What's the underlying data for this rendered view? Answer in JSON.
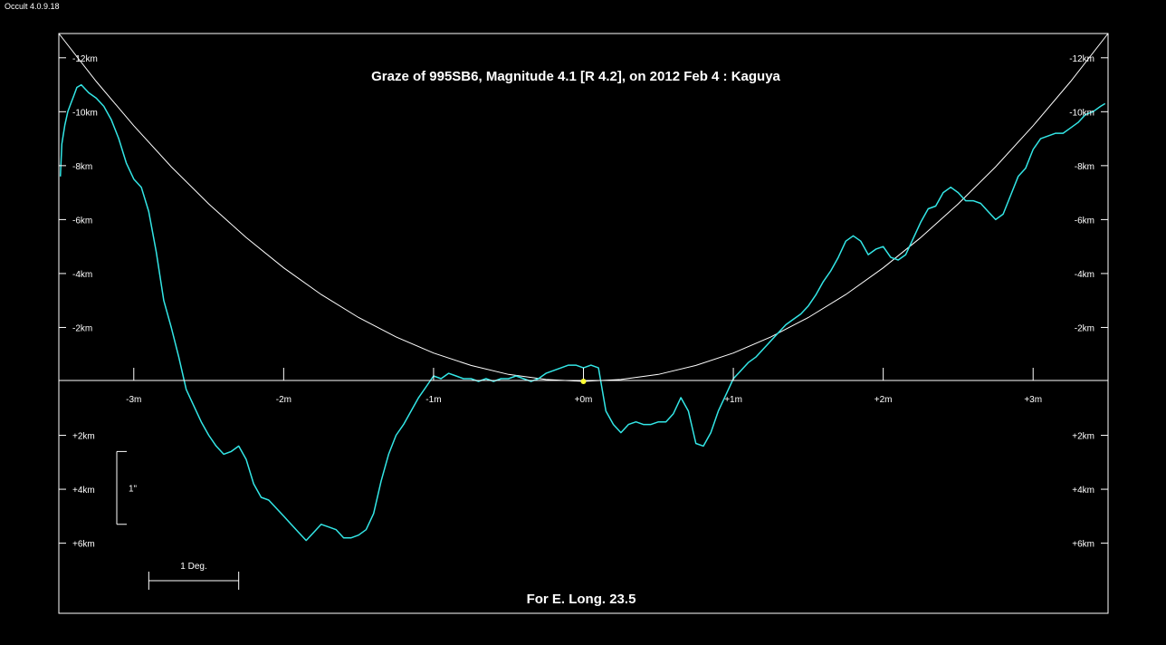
{
  "window": {
    "app_version": "Occult 4.0.9.18"
  },
  "colors": {
    "background": "#000000",
    "frame": "#ffffff",
    "profile": "#33e6e6",
    "curve": "#ffffff",
    "star": "#ffff33"
  },
  "chart_data": {
    "type": "line",
    "title": "Graze of  995SB6,  Magnitude 4.1 [R 4.2],  on 2012 Feb  4  :  Kaguya",
    "footer": "For E. Long. 23.5",
    "xlabel": "",
    "ylabel": "",
    "xlim": [
      -3.5,
      3.5
    ],
    "ylim": [
      -12.9,
      8.6
    ],
    "grid": false,
    "x_ticks": [
      -3,
      -2,
      -1,
      0,
      1,
      2,
      3
    ],
    "x_tick_labels": [
      "-3m",
      "-2m",
      "-1m",
      "+0m",
      "+1m",
      "+2m",
      "+3m"
    ],
    "y_ticks": [
      -12,
      -10,
      -8,
      -6,
      -4,
      -2,
      2,
      4,
      6
    ],
    "y_tick_labels": [
      "-12km",
      "-10km",
      "-8km",
      "-6km",
      "-4km",
      "-2km",
      "+2km",
      "+4km",
      "+6km"
    ],
    "scale_bar_vertical": {
      "label": "1\"",
      "y_range": [
        2.6,
        5.3
      ]
    },
    "scale_bar_horizontal": {
      "label": "1 Deg.",
      "x_range": [
        -2.9,
        -2.3
      ]
    },
    "star_point": {
      "x": 0,
      "y": 0
    },
    "series": [
      {
        "style": "reference-curve",
        "x": [
          -3.5,
          -3.25,
          -3.0,
          -2.75,
          -2.5,
          -2.25,
          -2.0,
          -1.75,
          -1.5,
          -1.25,
          -1.0,
          -0.75,
          -0.5,
          -0.25,
          0.0,
          0.25,
          0.5,
          0.75,
          1.0,
          1.25,
          1.5,
          1.75,
          2.0,
          2.25,
          2.5,
          2.75,
          3.0,
          3.25,
          3.5
        ],
        "y": [
          -12.9,
          -11.12,
          -9.48,
          -7.96,
          -6.58,
          -5.33,
          -4.21,
          -3.22,
          -2.37,
          -1.65,
          -1.05,
          -0.59,
          -0.26,
          -0.07,
          0.0,
          -0.07,
          -0.26,
          -0.59,
          -1.05,
          -1.65,
          -2.37,
          -3.22,
          -4.21,
          -5.33,
          -6.58,
          -7.96,
          -9.48,
          -11.12,
          -12.9
        ]
      },
      {
        "style": "limb-profile",
        "x": [
          -3.49,
          -3.48,
          -3.46,
          -3.44,
          -3.42,
          -3.4,
          -3.38,
          -3.35,
          -3.3,
          -3.25,
          -3.2,
          -3.15,
          -3.1,
          -3.05,
          -3.0,
          -2.95,
          -2.9,
          -2.85,
          -2.8,
          -2.75,
          -2.7,
          -2.65,
          -2.6,
          -2.55,
          -2.5,
          -2.45,
          -2.4,
          -2.35,
          -2.3,
          -2.25,
          -2.2,
          -2.15,
          -2.1,
          -2.05,
          -2.0,
          -1.95,
          -1.9,
          -1.85,
          -1.8,
          -1.75,
          -1.7,
          -1.65,
          -1.6,
          -1.55,
          -1.5,
          -1.45,
          -1.4,
          -1.35,
          -1.3,
          -1.25,
          -1.2,
          -1.15,
          -1.1,
          -1.05,
          -1.0,
          -0.95,
          -0.9,
          -0.85,
          -0.8,
          -0.75,
          -0.7,
          -0.65,
          -0.6,
          -0.55,
          -0.5,
          -0.45,
          -0.4,
          -0.35,
          -0.3,
          -0.25,
          -0.2,
          -0.15,
          -0.1,
          -0.05,
          0.0,
          0.05,
          0.1,
          0.15,
          0.2,
          0.25,
          0.3,
          0.35,
          0.4,
          0.45,
          0.5,
          0.55,
          0.6,
          0.65,
          0.7,
          0.75,
          0.8,
          0.85,
          0.9,
          0.95,
          1.0,
          1.05,
          1.1,
          1.15,
          1.2,
          1.25,
          1.3,
          1.35,
          1.4,
          1.45,
          1.5,
          1.55,
          1.6,
          1.65,
          1.7,
          1.75,
          1.8,
          1.85,
          1.9,
          1.95,
          2.0,
          2.05,
          2.1,
          2.15,
          2.2,
          2.25,
          2.3,
          2.35,
          2.4,
          2.45,
          2.5,
          2.55,
          2.6,
          2.65,
          2.7,
          2.75,
          2.8,
          2.85,
          2.9,
          2.95,
          3.0,
          3.05,
          3.1,
          3.15,
          3.2,
          3.25,
          3.3,
          3.35,
          3.4,
          3.45,
          3.48
        ],
        "y": [
          -7.6,
          -8.8,
          -9.5,
          -10.0,
          -10.3,
          -10.6,
          -10.9,
          -11.0,
          -10.7,
          -10.5,
          -10.2,
          -9.7,
          -9.0,
          -8.1,
          -7.5,
          -7.2,
          -6.3,
          -4.8,
          -3.0,
          -2.0,
          -0.9,
          0.3,
          0.9,
          1.5,
          2.0,
          2.4,
          2.7,
          2.6,
          2.4,
          2.9,
          3.8,
          4.3,
          4.4,
          4.7,
          5.0,
          5.3,
          5.6,
          5.9,
          5.6,
          5.3,
          5.4,
          5.5,
          5.8,
          5.8,
          5.7,
          5.5,
          4.9,
          3.7,
          2.7,
          2.0,
          1.6,
          1.1,
          0.6,
          0.2,
          -0.2,
          -0.1,
          -0.3,
          -0.2,
          -0.1,
          -0.1,
          0.0,
          -0.1,
          0.0,
          -0.1,
          -0.1,
          -0.2,
          -0.1,
          0.0,
          -0.1,
          -0.3,
          -0.4,
          -0.5,
          -0.6,
          -0.6,
          -0.5,
          -0.6,
          -0.5,
          1.1,
          1.6,
          1.9,
          1.6,
          1.5,
          1.6,
          1.6,
          1.5,
          1.5,
          1.2,
          0.6,
          1.1,
          2.3,
          2.4,
          1.9,
          1.1,
          0.5,
          -0.1,
          -0.4,
          -0.7,
          -0.9,
          -1.2,
          -1.5,
          -1.8,
          -2.1,
          -2.3,
          -2.5,
          -2.8,
          -3.2,
          -3.7,
          -4.1,
          -4.6,
          -5.2,
          -5.4,
          -5.2,
          -4.7,
          -4.9,
          -5.0,
          -4.6,
          -4.5,
          -4.7,
          -5.3,
          -5.9,
          -6.4,
          -6.5,
          -7.0,
          -7.2,
          -7.0,
          -6.7,
          -6.7,
          -6.6,
          -6.3,
          -6.0,
          -6.2,
          -6.9,
          -7.6,
          -7.9,
          -8.6,
          -9.0,
          -9.1,
          -9.2,
          -9.2,
          -9.4,
          -9.6,
          -9.9,
          -10.0,
          -10.2,
          -10.3
        ]
      }
    ]
  }
}
